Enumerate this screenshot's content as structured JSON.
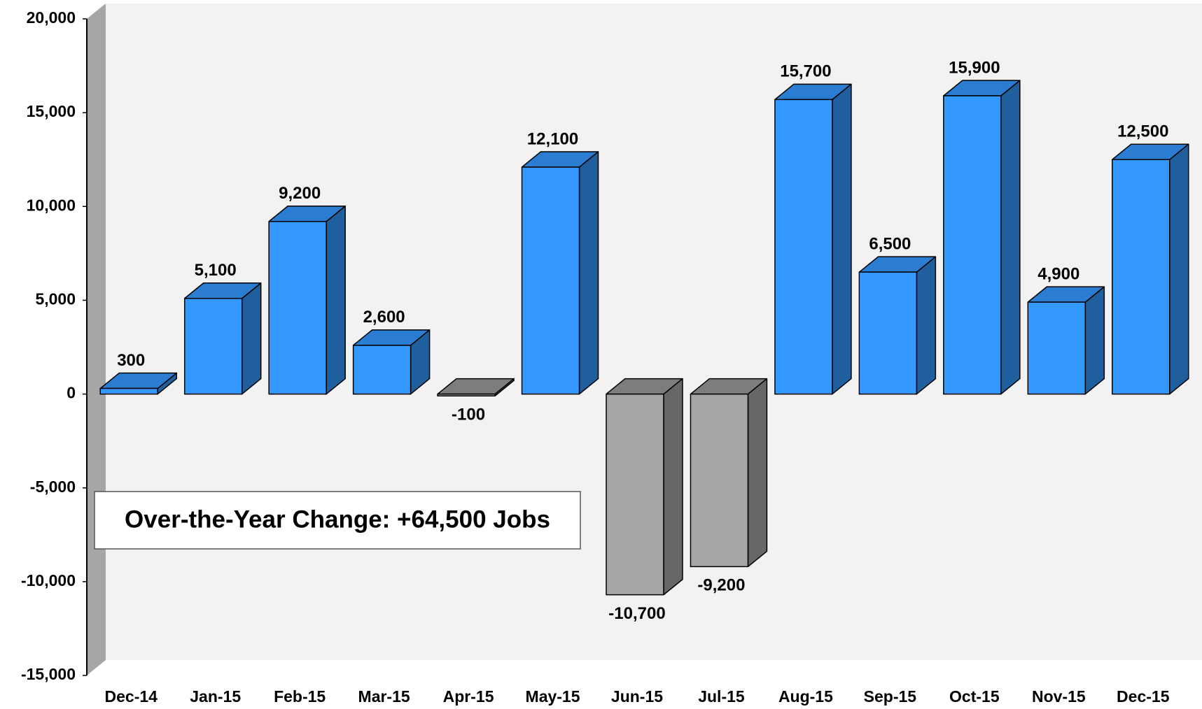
{
  "chart_data": {
    "type": "bar3d",
    "categories": [
      "Dec-14",
      "Jan-15",
      "Feb-15",
      "Mar-15",
      "Apr-15",
      "May-15",
      "Jun-15",
      "Jul-15",
      "Aug-15",
      "Sep-15",
      "Oct-15",
      "Nov-15",
      "Dec-15"
    ],
    "values": [
      300,
      5100,
      9200,
      2600,
      -100,
      12100,
      -10700,
      -9200,
      15700,
      6500,
      15900,
      4900,
      12500
    ],
    "value_labels": [
      "300",
      "5,100",
      "9,200",
      "2,600",
      "-100",
      "12,100",
      "-10,700",
      "-9,200",
      "15,700",
      "6,500",
      "15,900",
      "4,900",
      "12,500"
    ],
    "color": "#3399ff",
    "negative_color": "#a6a6a6",
    "ylim": [
      -15000,
      20000
    ],
    "yticks": [
      {
        "value": -15000,
        "label": "-15,000"
      },
      {
        "value": -10000,
        "label": "-10,000"
      },
      {
        "value": -5000,
        "label": "-5,000"
      },
      {
        "value": 0,
        "label": "0"
      },
      {
        "value": 5000,
        "label": "5,000"
      },
      {
        "value": 10000,
        "label": "10,000"
      },
      {
        "value": 15000,
        "label": "15,000"
      },
      {
        "value": 20000,
        "label": "20,000"
      }
    ],
    "annotation": "Over-the-Year Change: +64,500 Jobs"
  }
}
